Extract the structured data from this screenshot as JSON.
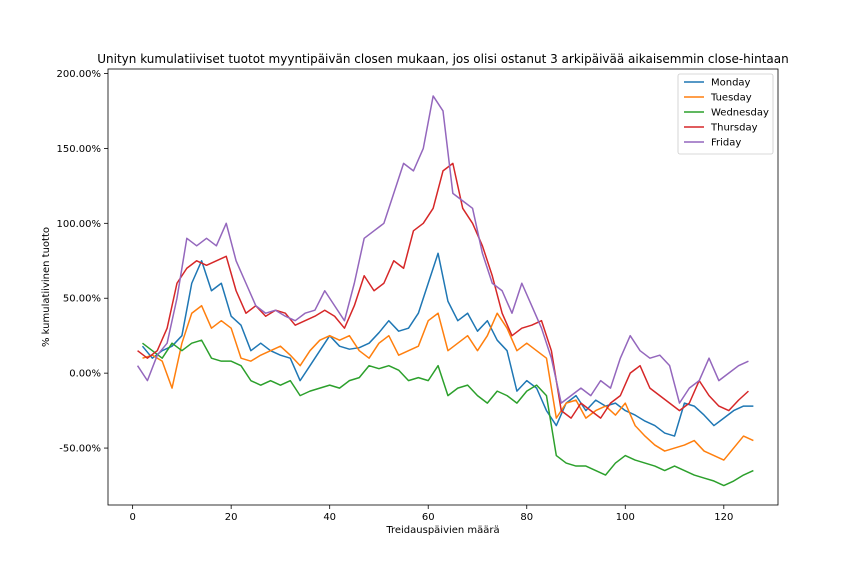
{
  "chart_data": {
    "type": "line",
    "title": "Unityn kumulatiiviset tuotot myyntipäivän closen mukaan, jos olisi ostanut 3 arkipäivää aikaisemmin close-hintaan",
    "xlabel": "Treidauspäivien määrä",
    "ylabel": "% kumulatiivinen tuotto",
    "xlim": [
      -5,
      131
    ],
    "ylim": [
      -88,
      203
    ],
    "xticks": [
      0,
      20,
      40,
      60,
      80,
      100,
      120
    ],
    "xtick_labels": [
      "0",
      "20",
      "40",
      "60",
      "80",
      "100",
      "120"
    ],
    "yticks": [
      -50,
      0,
      50,
      100,
      150,
      200
    ],
    "ytick_labels": [
      "-50.00%",
      "0.00%",
      "50.00%",
      "100.00%",
      "150.00%",
      "200.00%"
    ],
    "legend": {
      "placement": "top-right"
    },
    "series": [
      {
        "name": "Monday",
        "color": "#1f77b4",
        "x": [
          2,
          4,
          6,
          8,
          10,
          12,
          14,
          16,
          18,
          20,
          22,
          24,
          26,
          28,
          30,
          32,
          34,
          36,
          38,
          40,
          42,
          44,
          46,
          48,
          50,
          52,
          54,
          56,
          58,
          60,
          62,
          64,
          66,
          68,
          70,
          72,
          74,
          76,
          78,
          80,
          82,
          84,
          86,
          88,
          90,
          92,
          94,
          96,
          98,
          100,
          102,
          104,
          106,
          108,
          110,
          112,
          114,
          116,
          118,
          120,
          122,
          124,
          126
        ],
        "y": [
          18,
          10,
          15,
          18,
          25,
          60,
          75,
          55,
          60,
          38,
          32,
          15,
          20,
          15,
          12,
          10,
          -5,
          5,
          15,
          25,
          18,
          16,
          17,
          20,
          27,
          35,
          28,
          30,
          40,
          60,
          80,
          48,
          35,
          40,
          28,
          35,
          22,
          15,
          -12,
          -5,
          -10,
          -25,
          -35,
          -20,
          -15,
          -25,
          -18,
          -22,
          -20,
          -25,
          -28,
          -32,
          -35,
          -40,
          -42,
          -20,
          -22,
          -28,
          -35,
          -30,
          -25,
          -22,
          -22
        ]
      },
      {
        "name": "Tuesday",
        "color": "#ff7f0e",
        "x": [
          2,
          4,
          6,
          8,
          10,
          12,
          14,
          16,
          18,
          20,
          22,
          24,
          26,
          28,
          30,
          32,
          34,
          36,
          38,
          40,
          42,
          44,
          46,
          48,
          50,
          52,
          54,
          56,
          58,
          60,
          62,
          64,
          66,
          68,
          70,
          72,
          74,
          76,
          78,
          80,
          82,
          84,
          86,
          88,
          90,
          92,
          94,
          96,
          98,
          100,
          102,
          104,
          106,
          108,
          110,
          112,
          114,
          116,
          118,
          120,
          122,
          124,
          126
        ],
        "y": [
          10,
          12,
          8,
          -10,
          20,
          40,
          45,
          30,
          35,
          30,
          10,
          8,
          12,
          15,
          18,
          12,
          5,
          15,
          22,
          25,
          22,
          25,
          15,
          10,
          20,
          25,
          12,
          15,
          18,
          35,
          40,
          15,
          20,
          25,
          15,
          25,
          40,
          30,
          15,
          20,
          15,
          10,
          -30,
          -20,
          -18,
          -30,
          -25,
          -22,
          -28,
          -20,
          -35,
          -42,
          -48,
          -52,
          -50,
          -48,
          -45,
          -52,
          -55,
          -58,
          -50,
          -42,
          -45
        ]
      },
      {
        "name": "Wednesday",
        "color": "#2ca02c",
        "x": [
          2,
          4,
          6,
          8,
          10,
          12,
          14,
          16,
          18,
          20,
          22,
          24,
          26,
          28,
          30,
          32,
          34,
          36,
          38,
          40,
          42,
          44,
          46,
          48,
          50,
          52,
          54,
          56,
          58,
          60,
          62,
          64,
          66,
          68,
          70,
          72,
          74,
          76,
          78,
          80,
          82,
          84,
          86,
          88,
          90,
          92,
          94,
          96,
          98,
          100,
          102,
          104,
          106,
          108,
          110,
          112,
          114,
          116,
          118,
          120,
          122,
          124,
          126
        ],
        "y": [
          20,
          15,
          10,
          20,
          15,
          20,
          22,
          10,
          8,
          8,
          5,
          -5,
          -8,
          -5,
          -8,
          -5,
          -15,
          -12,
          -10,
          -8,
          -10,
          -5,
          -3,
          5,
          3,
          5,
          2,
          -5,
          -3,
          -5,
          5,
          -15,
          -10,
          -8,
          -15,
          -20,
          -12,
          -15,
          -20,
          -12,
          -8,
          -15,
          -55,
          -60,
          -62,
          -62,
          -65,
          -68,
          -60,
          -55,
          -58,
          -60,
          -62,
          -65,
          -62,
          -65,
          -68,
          -70,
          -72,
          -75,
          -72,
          -68,
          -65
        ]
      },
      {
        "name": "Thursday",
        "color": "#d62728",
        "x": [
          1,
          3,
          5,
          7,
          9,
          11,
          13,
          15,
          17,
          19,
          21,
          23,
          25,
          27,
          29,
          31,
          33,
          35,
          37,
          39,
          41,
          43,
          45,
          47,
          49,
          51,
          53,
          55,
          57,
          59,
          61,
          63,
          65,
          67,
          69,
          71,
          73,
          75,
          77,
          79,
          81,
          83,
          85,
          87,
          89,
          91,
          93,
          95,
          97,
          99,
          101,
          103,
          105,
          107,
          109,
          111,
          113,
          115,
          117,
          119,
          121,
          123,
          125
        ],
        "y": [
          15,
          10,
          15,
          30,
          60,
          70,
          75,
          72,
          75,
          78,
          55,
          40,
          45,
          38,
          42,
          40,
          32,
          35,
          38,
          42,
          38,
          30,
          45,
          65,
          55,
          60,
          75,
          70,
          95,
          100,
          110,
          135,
          140,
          110,
          100,
          85,
          65,
          40,
          25,
          30,
          32,
          35,
          15,
          -25,
          -30,
          -20,
          -25,
          -30,
          -20,
          -15,
          0,
          5,
          -10,
          -15,
          -20,
          -25,
          -20,
          -5,
          -15,
          -22,
          -25,
          -18,
          -12
        ]
      },
      {
        "name": "Friday",
        "color": "#9467bd",
        "x": [
          1,
          3,
          5,
          7,
          9,
          11,
          13,
          15,
          17,
          19,
          21,
          23,
          25,
          27,
          29,
          31,
          33,
          35,
          37,
          39,
          41,
          43,
          45,
          47,
          49,
          51,
          53,
          55,
          57,
          59,
          61,
          63,
          65,
          67,
          69,
          71,
          73,
          75,
          77,
          79,
          81,
          83,
          85,
          87,
          89,
          91,
          93,
          95,
          97,
          99,
          101,
          103,
          105,
          107,
          109,
          111,
          113,
          115,
          117,
          119,
          121,
          123,
          125
        ],
        "y": [
          5,
          -5,
          12,
          20,
          50,
          90,
          85,
          90,
          85,
          100,
          75,
          60,
          45,
          40,
          42,
          38,
          35,
          40,
          42,
          55,
          45,
          35,
          60,
          90,
          95,
          100,
          120,
          140,
          135,
          150,
          185,
          175,
          120,
          115,
          110,
          80,
          60,
          55,
          40,
          60,
          45,
          30,
          10,
          -20,
          -15,
          -10,
          -15,
          -5,
          -10,
          10,
          25,
          15,
          10,
          12,
          5,
          -20,
          -10,
          -5,
          10,
          -5,
          0,
          5,
          8
        ]
      }
    ]
  }
}
